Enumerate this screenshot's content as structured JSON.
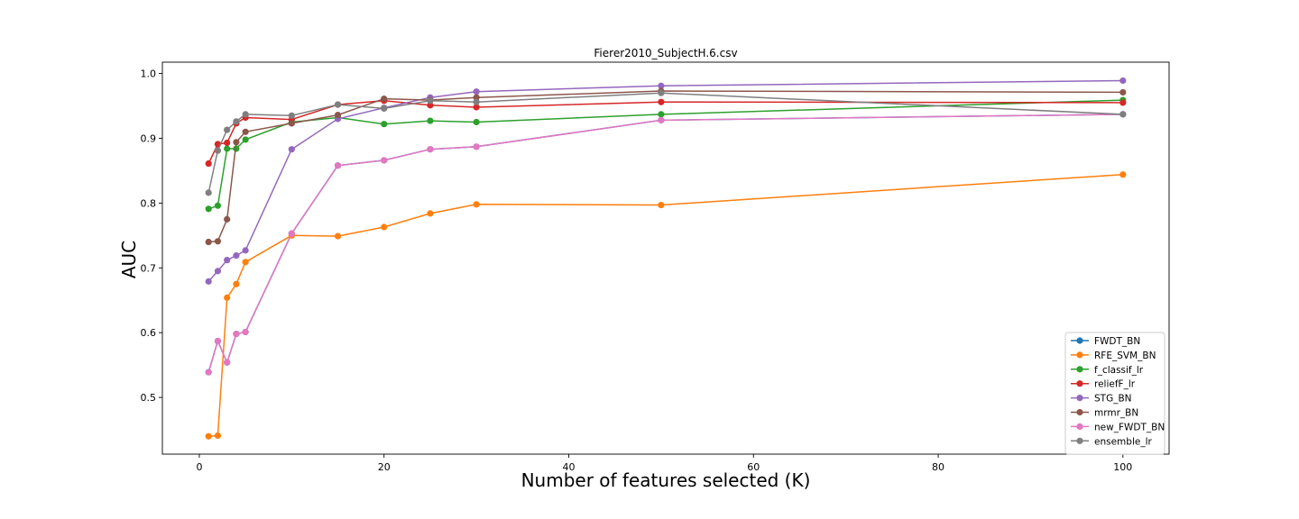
{
  "chart_data": {
    "type": "line",
    "title": "Fierer2010_SubjectH.6.csv",
    "xlabel": "Number of features selected (K)",
    "ylabel": "AUC",
    "xlim": [
      -4,
      105
    ],
    "ylim": [
      0.4125,
      1.0175
    ],
    "xticks": [
      0,
      20,
      40,
      60,
      80,
      100
    ],
    "yticks": [
      0.5,
      0.6,
      0.7,
      0.8,
      0.9,
      1.0
    ],
    "xtick_labels": [
      "0",
      "20",
      "40",
      "60",
      "80",
      "100"
    ],
    "ytick_labels": [
      "0.5",
      "0.6",
      "0.7",
      "0.8",
      "0.9",
      "1.0"
    ],
    "grid": false,
    "legend_position": "lower-right",
    "x": [
      1,
      2,
      3,
      4,
      5,
      10,
      15,
      20,
      25,
      30,
      50,
      100
    ],
    "series": [
      {
        "name": "FWDT_BN",
        "color": "#1f77b4",
        "values": [
          0.539,
          0.587,
          0.554,
          0.598,
          0.601,
          0.753,
          0.858,
          0.866,
          0.883,
          0.887,
          0.928,
          0.937
        ]
      },
      {
        "name": "RFE_SVM_BN",
        "color": "#ff7f0e",
        "values": [
          0.44,
          0.441,
          0.654,
          0.675,
          0.709,
          0.75,
          0.749,
          0.763,
          0.784,
          0.798,
          0.797,
          0.844
        ]
      },
      {
        "name": "f_classif_lr",
        "color": "#2ca02c",
        "values": [
          0.791,
          0.796,
          0.884,
          0.884,
          0.898,
          0.925,
          0.932,
          0.922,
          0.927,
          0.925,
          0.937,
          0.959
        ]
      },
      {
        "name": "reliefF_lr",
        "color": "#d62728",
        "values": [
          0.861,
          0.891,
          0.893,
          0.923,
          0.932,
          0.929,
          0.952,
          0.958,
          0.951,
          0.948,
          0.956,
          0.955
        ]
      },
      {
        "name": "STG_BN",
        "color": "#9467bd",
        "values": [
          0.679,
          0.695,
          0.712,
          0.719,
          0.727,
          0.883,
          0.93,
          0.947,
          0.963,
          0.972,
          0.981,
          0.989
        ]
      },
      {
        "name": "mrmr_BN",
        "color": "#8c564b",
        "values": [
          0.74,
          0.741,
          0.775,
          0.894,
          0.91,
          0.923,
          0.936,
          0.961,
          0.959,
          0.963,
          0.973,
          0.971
        ]
      },
      {
        "name": "new_FWDT_BN",
        "color": "#e377c2",
        "values": [
          0.539,
          0.587,
          0.554,
          0.598,
          0.601,
          0.753,
          0.858,
          0.866,
          0.883,
          0.887,
          0.928,
          0.937
        ]
      },
      {
        "name": "ensemble_lr",
        "color": "#7f7f7f",
        "values": [
          0.816,
          0.881,
          0.913,
          0.926,
          0.937,
          0.935,
          0.952,
          0.946,
          0.958,
          0.956,
          0.97,
          0.937
        ]
      }
    ]
  }
}
